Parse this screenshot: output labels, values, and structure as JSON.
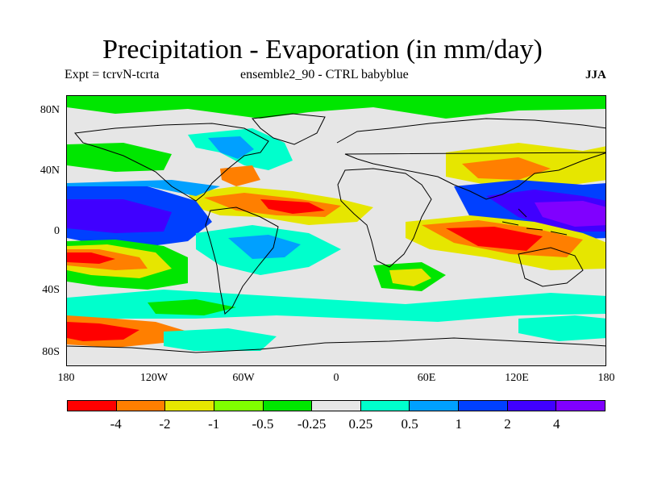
{
  "title": "Precipitation - Evaporation (in mm/day)",
  "subtitle_left": "Expt = tcrvN-tcrta",
  "subtitle_center": "ensemble2_90 - CTRL babyblue",
  "season": "JJA",
  "y_ticks": [
    "80N",
    "40N",
    "0",
    "40S",
    "80S"
  ],
  "x_ticks": [
    "180",
    "120W",
    "60W",
    "0",
    "60E",
    "120E",
    "180"
  ],
  "colorbar": {
    "colors": [
      "#ff0000",
      "#ff7f00",
      "#e6e600",
      "#80ff00",
      "#00e600",
      "#e6e6e6",
      "#00ffcc",
      "#00a0ff",
      "#0040ff",
      "#4000ff",
      "#8000ff"
    ],
    "labels": [
      "-4",
      "-2",
      "-1",
      "-0.5",
      "-0.25",
      "0.25",
      "0.5",
      "1",
      "2",
      "4"
    ]
  },
  "chart_data": {
    "type": "heatmap",
    "title": "Precipitation - Evaporation (in mm/day)",
    "field": "P - E difference (ensemble2_90 - CTRL)",
    "units": "mm/day",
    "season": "JJA",
    "x_range_lon": [
      -180,
      180
    ],
    "y_range_lat": [
      -90,
      90
    ],
    "contour_levels": [
      -4,
      -2,
      -1,
      -0.5,
      -0.25,
      0.25,
      0.5,
      1,
      2,
      4
    ]
  }
}
